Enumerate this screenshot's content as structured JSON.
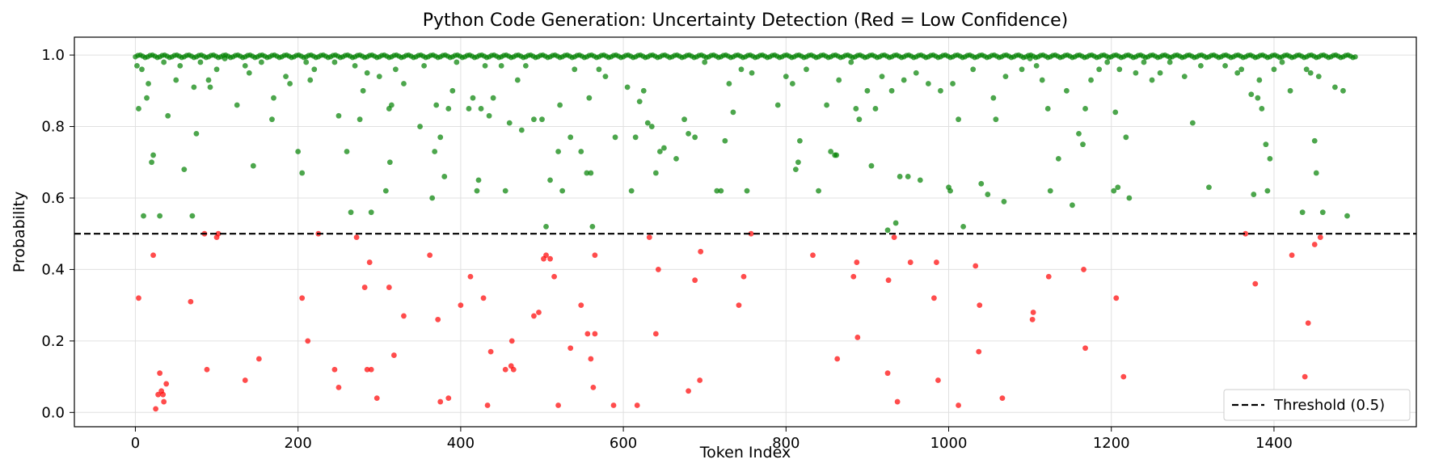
{
  "chart_data": {
    "type": "scatter",
    "title": "Python Code Generation: Uncertainty Detection (Red = Low Confidence)",
    "xlabel": "Token Index",
    "ylabel": "Probability",
    "xlim": [
      -75,
      1575
    ],
    "ylim": [
      -0.04,
      1.05
    ],
    "xticks": [
      0,
      200,
      400,
      600,
      800,
      1000,
      1200,
      1400
    ],
    "yticks": [
      0.0,
      0.2,
      0.4,
      0.6,
      0.8,
      1.0
    ],
    "xtick_labels": [
      "0",
      "200",
      "400",
      "600",
      "800",
      "1000",
      "1200",
      "1400"
    ],
    "ytick_labels": [
      "0.0",
      "0.2",
      "0.4",
      "0.6",
      "0.8",
      "1.0"
    ],
    "grid": true,
    "legend_position": "lower-right",
    "threshold": {
      "value": 0.5,
      "label": "Threshold (0.5)",
      "style": "dashed",
      "color": "#000000"
    },
    "colors": {
      "high": "#008000",
      "low": "#ff0000"
    },
    "series": [
      {
        "color": "#008000",
        "points": [
          [
            2,
            0.97
          ],
          [
            4,
            0.85
          ],
          [
            8,
            0.96
          ],
          [
            10,
            0.55
          ],
          [
            14,
            0.88
          ],
          [
            16,
            0.92
          ],
          [
            20,
            0.7
          ],
          [
            22,
            0.72
          ],
          [
            30,
            0.55
          ],
          [
            35,
            0.98
          ],
          [
            40,
            0.83
          ],
          [
            50,
            0.93
          ],
          [
            55,
            0.97
          ],
          [
            60,
            0.68
          ],
          [
            70,
            0.55
          ],
          [
            75,
            0.78
          ],
          [
            72,
            0.91
          ],
          [
            80,
            0.98
          ],
          [
            90,
            0.93
          ],
          [
            92,
            0.91
          ],
          [
            100,
            0.96
          ],
          [
            110,
            0.99
          ],
          [
            125,
            0.86
          ],
          [
            135,
            0.97
          ],
          [
            140,
            0.95
          ],
          [
            145,
            0.69
          ],
          [
            155,
            0.98
          ],
          [
            168,
            0.82
          ],
          [
            170,
            0.88
          ],
          [
            185,
            0.94
          ],
          [
            190,
            0.92
          ],
          [
            200,
            0.73
          ],
          [
            205,
            0.67
          ],
          [
            210,
            0.98
          ],
          [
            215,
            0.93
          ],
          [
            220,
            0.96
          ],
          [
            245,
            0.98
          ],
          [
            250,
            0.83
          ],
          [
            260,
            0.73
          ],
          [
            265,
            0.56
          ],
          [
            270,
            0.97
          ],
          [
            276,
            0.82
          ],
          [
            280,
            0.9
          ],
          [
            285,
            0.95
          ],
          [
            290,
            0.56
          ],
          [
            300,
            0.94
          ],
          [
            308,
            0.62
          ],
          [
            312,
            0.85
          ],
          [
            315,
            0.86
          ],
          [
            313,
            0.7
          ],
          [
            320,
            0.96
          ],
          [
            330,
            0.92
          ],
          [
            350,
            0.8
          ],
          [
            355,
            0.97
          ],
          [
            365,
            0.6
          ],
          [
            368,
            0.73
          ],
          [
            370,
            0.86
          ],
          [
            375,
            0.77
          ],
          [
            380,
            0.66
          ],
          [
            385,
            0.85
          ],
          [
            390,
            0.9
          ],
          [
            395,
            0.98
          ],
          [
            410,
            0.85
          ],
          [
            415,
            0.88
          ],
          [
            420,
            0.62
          ],
          [
            422,
            0.65
          ],
          [
            425,
            0.85
          ],
          [
            430,
            0.97
          ],
          [
            435,
            0.83
          ],
          [
            440,
            0.88
          ],
          [
            450,
            0.97
          ],
          [
            455,
            0.62
          ],
          [
            460,
            0.81
          ],
          [
            470,
            0.93
          ],
          [
            475,
            0.79
          ],
          [
            480,
            0.97
          ],
          [
            490,
            0.82
          ],
          [
            500,
            0.82
          ],
          [
            505,
            0.52
          ],
          [
            510,
            0.65
          ],
          [
            520,
            0.73
          ],
          [
            522,
            0.86
          ],
          [
            525,
            0.62
          ],
          [
            535,
            0.77
          ],
          [
            540,
            0.96
          ],
          [
            548,
            0.73
          ],
          [
            555,
            0.67
          ],
          [
            558,
            0.88
          ],
          [
            560,
            0.67
          ],
          [
            562,
            0.52
          ],
          [
            570,
            0.96
          ],
          [
            578,
            0.94
          ],
          [
            590,
            0.77
          ],
          [
            605,
            0.91
          ],
          [
            610,
            0.62
          ],
          [
            615,
            0.77
          ],
          [
            620,
            0.87
          ],
          [
            625,
            0.9
          ],
          [
            630,
            0.81
          ],
          [
            635,
            0.8
          ],
          [
            640,
            0.67
          ],
          [
            645,
            0.73
          ],
          [
            650,
            0.74
          ],
          [
            665,
            0.71
          ],
          [
            675,
            0.82
          ],
          [
            680,
            0.78
          ],
          [
            688,
            0.77
          ],
          [
            700,
            0.98
          ],
          [
            715,
            0.62
          ],
          [
            720,
            0.62
          ],
          [
            725,
            0.76
          ],
          [
            730,
            0.92
          ],
          [
            735,
            0.84
          ],
          [
            745,
            0.96
          ],
          [
            752,
            0.62
          ],
          [
            758,
            0.95
          ],
          [
            790,
            0.86
          ],
          [
            800,
            0.94
          ],
          [
            808,
            0.92
          ],
          [
            812,
            0.68
          ],
          [
            815,
            0.7
          ],
          [
            817,
            0.76
          ],
          [
            825,
            0.96
          ],
          [
            840,
            0.62
          ],
          [
            850,
            0.86
          ],
          [
            855,
            0.73
          ],
          [
            860,
            0.72
          ],
          [
            862,
            0.72
          ],
          [
            865,
            0.93
          ],
          [
            880,
            0.98
          ],
          [
            886,
            0.85
          ],
          [
            890,
            0.82
          ],
          [
            900,
            0.9
          ],
          [
            905,
            0.69
          ],
          [
            910,
            0.85
          ],
          [
            918,
            0.94
          ],
          [
            925,
            0.51
          ],
          [
            930,
            0.9
          ],
          [
            935,
            0.53
          ],
          [
            940,
            0.66
          ],
          [
            945,
            0.93
          ],
          [
            950,
            0.66
          ],
          [
            960,
            0.95
          ],
          [
            965,
            0.65
          ],
          [
            975,
            0.92
          ],
          [
            990,
            0.9
          ],
          [
            1000,
            0.63
          ],
          [
            1002,
            0.62
          ],
          [
            1005,
            0.92
          ],
          [
            1012,
            0.82
          ],
          [
            1018,
            0.52
          ],
          [
            1030,
            0.96
          ],
          [
            1040,
            0.64
          ],
          [
            1048,
            0.61
          ],
          [
            1055,
            0.88
          ],
          [
            1058,
            0.82
          ],
          [
            1068,
            0.59
          ],
          [
            1070,
            0.94
          ],
          [
            1090,
            0.96
          ],
          [
            1100,
            0.99
          ],
          [
            1108,
            0.97
          ],
          [
            1115,
            0.93
          ],
          [
            1122,
            0.85
          ],
          [
            1125,
            0.62
          ],
          [
            1135,
            0.71
          ],
          [
            1145,
            0.9
          ],
          [
            1152,
            0.58
          ],
          [
            1160,
            0.78
          ],
          [
            1165,
            0.75
          ],
          [
            1168,
            0.85
          ],
          [
            1175,
            0.93
          ],
          [
            1185,
            0.96
          ],
          [
            1195,
            0.98
          ],
          [
            1203,
            0.62
          ],
          [
            1205,
            0.84
          ],
          [
            1208,
            0.63
          ],
          [
            1210,
            0.96
          ],
          [
            1218,
            0.77
          ],
          [
            1222,
            0.6
          ],
          [
            1230,
            0.95
          ],
          [
            1240,
            0.98
          ],
          [
            1250,
            0.93
          ],
          [
            1260,
            0.95
          ],
          [
            1272,
            0.98
          ],
          [
            1290,
            0.94
          ],
          [
            1300,
            0.81
          ],
          [
            1310,
            0.97
          ],
          [
            1320,
            0.63
          ],
          [
            1340,
            0.97
          ],
          [
            1355,
            0.95
          ],
          [
            1360,
            0.96
          ],
          [
            1372,
            0.89
          ],
          [
            1375,
            0.61
          ],
          [
            1380,
            0.88
          ],
          [
            1382,
            0.93
          ],
          [
            1385,
            0.85
          ],
          [
            1390,
            0.75
          ],
          [
            1392,
            0.62
          ],
          [
            1395,
            0.71
          ],
          [
            1400,
            0.96
          ],
          [
            1410,
            0.98
          ],
          [
            1420,
            0.9
          ],
          [
            1435,
            0.56
          ],
          [
            1440,
            0.96
          ],
          [
            1445,
            0.95
          ],
          [
            1450,
            0.76
          ],
          [
            1452,
            0.67
          ],
          [
            1455,
            0.94
          ],
          [
            1460,
            0.56
          ],
          [
            1475,
            0.91
          ],
          [
            1485,
            0.9
          ],
          [
            1490,
            0.55
          ]
        ]
      },
      {
        "color": "#ff0000",
        "points": [
          [
            4,
            0.32
          ],
          [
            22,
            0.44
          ],
          [
            25,
            0.01
          ],
          [
            28,
            0.05
          ],
          [
            30,
            0.11
          ],
          [
            32,
            0.06
          ],
          [
            34,
            0.05
          ],
          [
            35,
            0.03
          ],
          [
            38,
            0.08
          ],
          [
            68,
            0.31
          ],
          [
            85,
            0.5
          ],
          [
            88,
            0.12
          ],
          [
            100,
            0.49
          ],
          [
            102,
            0.5
          ],
          [
            135,
            0.09
          ],
          [
            152,
            0.15
          ],
          [
            205,
            0.32
          ],
          [
            212,
            0.2
          ],
          [
            225,
            0.5
          ],
          [
            245,
            0.12
          ],
          [
            250,
            0.07
          ],
          [
            272,
            0.49
          ],
          [
            282,
            0.35
          ],
          [
            285,
            0.12
          ],
          [
            288,
            0.42
          ],
          [
            290,
            0.12
          ],
          [
            297,
            0.04
          ],
          [
            312,
            0.35
          ],
          [
            318,
            0.16
          ],
          [
            330,
            0.27
          ],
          [
            362,
            0.44
          ],
          [
            372,
            0.26
          ],
          [
            375,
            0.03
          ],
          [
            385,
            0.04
          ],
          [
            400,
            0.3
          ],
          [
            412,
            0.38
          ],
          [
            428,
            0.32
          ],
          [
            433,
            0.02
          ],
          [
            437,
            0.17
          ],
          [
            455,
            0.12
          ],
          [
            462,
            0.13
          ],
          [
            463,
            0.2
          ],
          [
            465,
            0.12
          ],
          [
            490,
            0.27
          ],
          [
            496,
            0.28
          ],
          [
            502,
            0.43
          ],
          [
            505,
            0.44
          ],
          [
            510,
            0.43
          ],
          [
            515,
            0.38
          ],
          [
            520,
            0.02
          ],
          [
            535,
            0.18
          ],
          [
            548,
            0.3
          ],
          [
            556,
            0.22
          ],
          [
            560,
            0.15
          ],
          [
            563,
            0.07
          ],
          [
            565,
            0.44
          ],
          [
            565,
            0.22
          ],
          [
            588,
            0.02
          ],
          [
            617,
            0.02
          ],
          [
            632,
            0.49
          ],
          [
            640,
            0.22
          ],
          [
            643,
            0.4
          ],
          [
            680,
            0.06
          ],
          [
            688,
            0.37
          ],
          [
            694,
            0.09
          ],
          [
            695,
            0.45
          ],
          [
            742,
            0.3
          ],
          [
            748,
            0.38
          ],
          [
            757,
            0.5
          ],
          [
            833,
            0.44
          ],
          [
            863,
            0.15
          ],
          [
            883,
            0.38
          ],
          [
            887,
            0.42
          ],
          [
            888,
            0.21
          ],
          [
            925,
            0.11
          ],
          [
            926,
            0.37
          ],
          [
            933,
            0.49
          ],
          [
            937,
            0.03
          ],
          [
            953,
            0.42
          ],
          [
            982,
            0.32
          ],
          [
            985,
            0.42
          ],
          [
            987,
            0.09
          ],
          [
            1012,
            0.02
          ],
          [
            1033,
            0.41
          ],
          [
            1037,
            0.17
          ],
          [
            1038,
            0.3
          ],
          [
            1066,
            0.04
          ],
          [
            1103,
            0.26
          ],
          [
            1104,
            0.28
          ],
          [
            1123,
            0.38
          ],
          [
            1166,
            0.4
          ],
          [
            1168,
            0.18
          ],
          [
            1206,
            0.32
          ],
          [
            1215,
            0.1
          ],
          [
            1365,
            0.5
          ],
          [
            1377,
            0.36
          ],
          [
            1422,
            0.44
          ],
          [
            1438,
            0.1
          ],
          [
            1442,
            0.25
          ],
          [
            1450,
            0.47
          ],
          [
            1457,
            0.49
          ]
        ]
      }
    ],
    "dense_band": {
      "color": "#008000",
      "y_values": [
        0.995,
        0.999,
        1.0,
        0.997,
        0.993
      ],
      "x_range": [
        0,
        1500
      ],
      "step": 3
    }
  }
}
